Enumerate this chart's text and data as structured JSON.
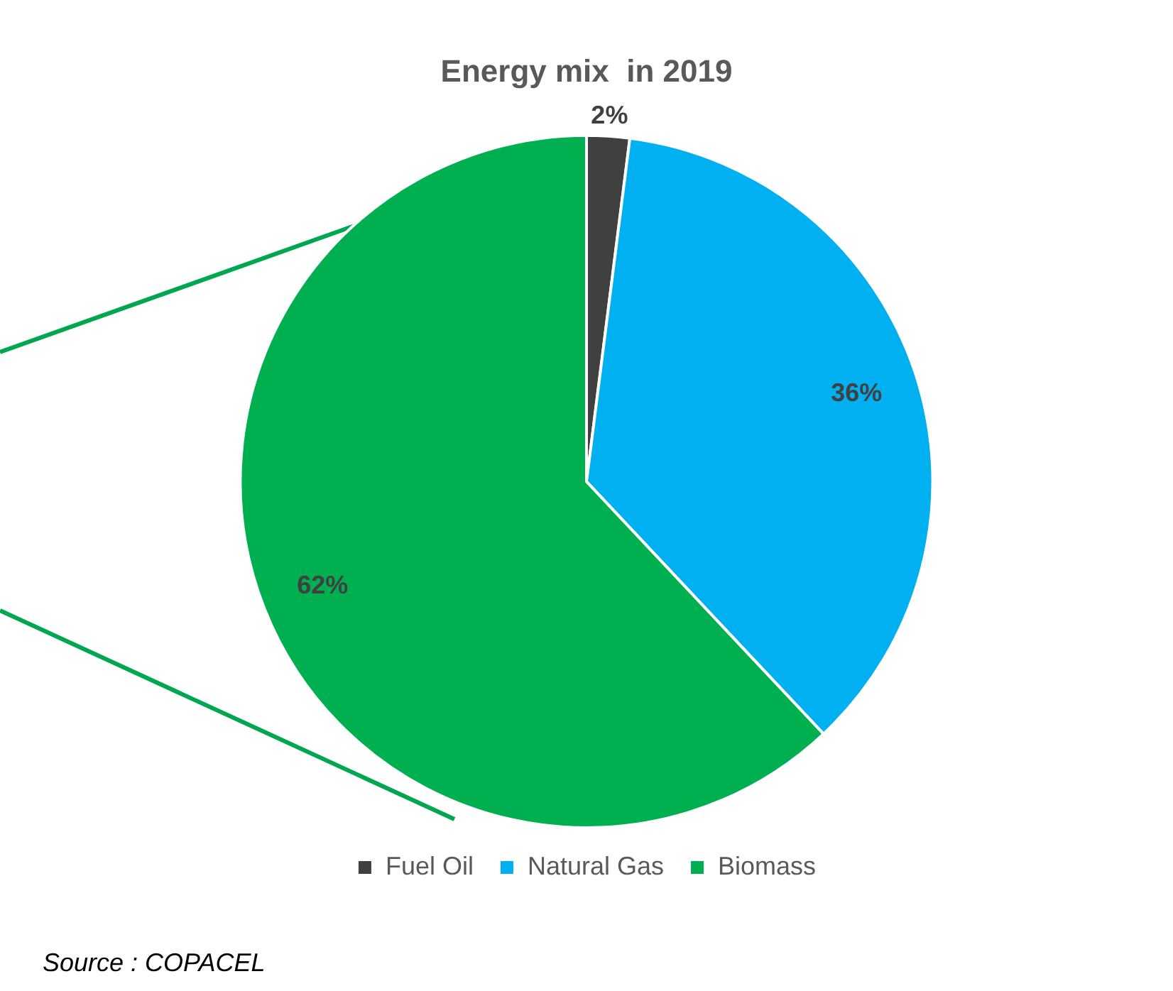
{
  "chart_data": {
    "type": "pie",
    "title": "Energy mix  in 2019",
    "categories": [
      "Fuel Oil",
      "Natural Gas",
      "Biomass"
    ],
    "values": [
      2,
      36,
      62
    ],
    "colors": [
      "#404040",
      "#00b0f0",
      "#00b050"
    ],
    "value_labels": [
      "2%",
      "36%",
      "62%"
    ],
    "legend": "bottom",
    "annotations": [
      "Source : COPACEL"
    ]
  }
}
